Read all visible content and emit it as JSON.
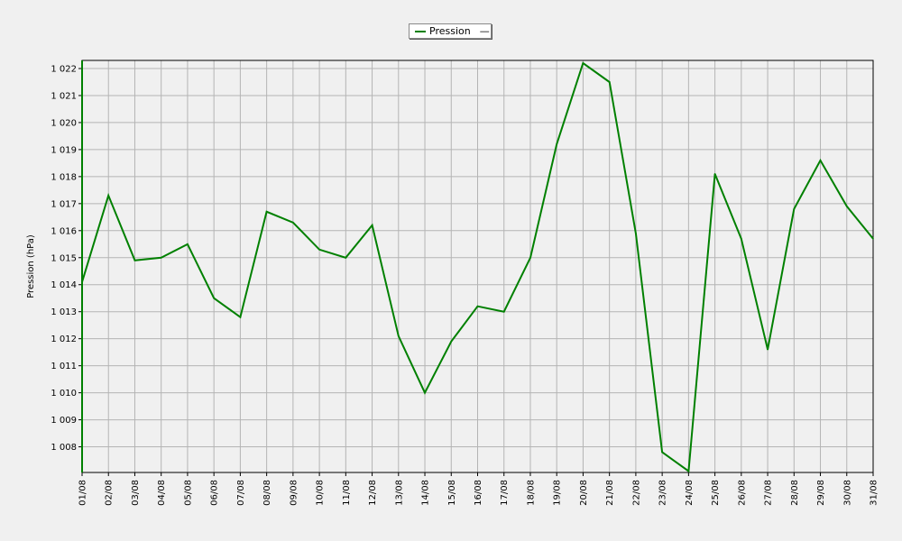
{
  "chart_data": {
    "type": "line",
    "title": "",
    "xlabel": "",
    "ylabel": "Pression (hPa)",
    "categories": [
      "01/08",
      "02/08",
      "03/08",
      "04/08",
      "05/08",
      "06/08",
      "07/08",
      "08/08",
      "09/08",
      "10/08",
      "11/08",
      "12/08",
      "13/08",
      "14/08",
      "15/08",
      "16/08",
      "17/08",
      "18/08",
      "19/08",
      "20/08",
      "21/08",
      "22/08",
      "23/08",
      "24/08",
      "25/08",
      "26/08",
      "27/08",
      "28/08",
      "29/08",
      "30/08",
      "31/08"
    ],
    "series": [
      {
        "name": "Pression",
        "color": "#008000",
        "values": [
          1014.1,
          1017.3,
          1014.9,
          1015.0,
          1015.5,
          1013.5,
          1012.8,
          1016.7,
          1016.3,
          1015.3,
          1015.0,
          1016.2,
          1012.1,
          1010.0,
          1011.9,
          1013.2,
          1013.0,
          1015.0,
          1019.2,
          1022.2,
          1021.5,
          1015.9,
          1007.8,
          1007.1,
          1018.1,
          1015.7,
          1011.6,
          1016.8,
          1018.6,
          1016.9,
          1015.7
        ]
      }
    ],
    "yticks": [
      1008,
      1009,
      1010,
      1011,
      1012,
      1013,
      1014,
      1015,
      1016,
      1017,
      1018,
      1019,
      1020,
      1021,
      1022
    ],
    "ytick_labels": [
      "1 008",
      "1 009",
      "1 010",
      "1 011",
      "1 012",
      "1 013",
      "1 014",
      "1 015",
      "1 016",
      "1 017",
      "1 018",
      "1 019",
      "1 020",
      "1 021",
      "1 022"
    ],
    "ylim": [
      1007.05,
      1022.3
    ],
    "grid": true,
    "legend": {
      "position": "top-center",
      "label": "Pression",
      "extra_text": "—"
    },
    "colors": {
      "background": "#f0f0f0",
      "plot_background": "#f0f0f0",
      "grid": "#b4b4b4",
      "frame": "#000000",
      "line": "#008000"
    }
  }
}
